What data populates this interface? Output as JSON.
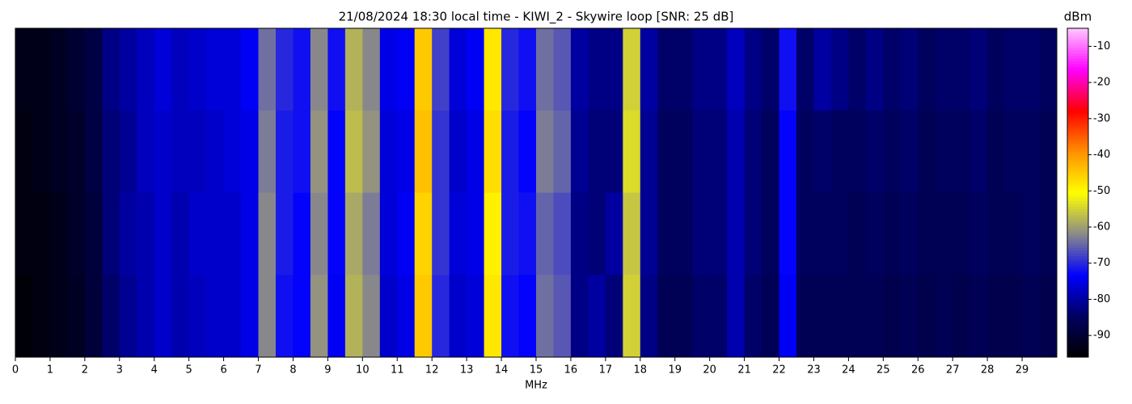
{
  "chart_data": {
    "type": "heatmap",
    "title": "21/08/2024 18:30 local time - KIWI_2 - Skywire loop [SNR: 25 dB]",
    "x_label": "MHz",
    "xlim": [
      0,
      30
    ],
    "xticks": [
      0,
      1,
      2,
      3,
      4,
      5,
      6,
      7,
      8,
      9,
      10,
      11,
      12,
      13,
      14,
      15,
      16,
      17,
      18,
      19,
      20,
      21,
      22,
      23,
      24,
      25,
      26,
      27,
      28,
      29
    ],
    "values": [
      [
        -93,
        -93,
        -92,
        -90,
        -88,
        -82,
        -80,
        -78,
        -76,
        -78,
        -77,
        -76,
        -76,
        -74,
        -64,
        -70,
        -72,
        -62,
        -72,
        -58,
        -62,
        -75,
        -74,
        -45,
        -68,
        -76,
        -74,
        -48,
        -70,
        -72,
        -64,
        -66,
        -80,
        -82,
        -82,
        -55,
        -80,
        -84,
        -84,
        -82,
        -82,
        -78,
        -82,
        -84,
        -72,
        -84,
        -80,
        -82,
        -84,
        -82,
        -84,
        -83,
        -85,
        -84,
        -84,
        -83,
        -85,
        -84,
        -84,
        -85
      ],
      [
        -94,
        -93,
        -92,
        -91,
        -88,
        -83,
        -81,
        -78,
        -77,
        -78,
        -78,
        -77,
        -76,
        -75,
        -63,
        -71,
        -72,
        -61,
        -73,
        -57,
        -61,
        -76,
        -75,
        -44,
        -69,
        -77,
        -75,
        -47,
        -71,
        -73,
        -63,
        -65,
        -81,
        -83,
        -83,
        -54,
        -81,
        -85,
        -85,
        -83,
        -83,
        -79,
        -83,
        -85,
        -73,
        -85,
        -84,
        -85,
        -85,
        -84,
        -85,
        -84,
        -86,
        -85,
        -85,
        -84,
        -86,
        -85,
        -85,
        -86
      ],
      [
        -94,
        -94,
        -93,
        -91,
        -89,
        -83,
        -80,
        -79,
        -77,
        -79,
        -77,
        -77,
        -77,
        -75,
        -62,
        -71,
        -73,
        -62,
        -73,
        -59,
        -63,
        -76,
        -74,
        -46,
        -69,
        -76,
        -75,
        -49,
        -71,
        -72,
        -65,
        -67,
        -82,
        -83,
        -80,
        -56,
        -81,
        -85,
        -85,
        -83,
        -83,
        -79,
        -83,
        -85,
        -73,
        -85,
        -85,
        -85,
        -86,
        -85,
        -86,
        -85,
        -86,
        -86,
        -86,
        -85,
        -86,
        -86,
        -85,
        -86
      ],
      [
        -95,
        -94,
        -93,
        -92,
        -89,
        -84,
        -81,
        -79,
        -77,
        -79,
        -78,
        -77,
        -77,
        -75,
        -62,
        -72,
        -73,
        -61,
        -74,
        -58,
        -62,
        -77,
        -75,
        -45,
        -70,
        -77,
        -76,
        -48,
        -72,
        -73,
        -64,
        -66,
        -82,
        -80,
        -83,
        -55,
        -82,
        -86,
        -86,
        -84,
        -84,
        -79,
        -84,
        -86,
        -74,
        -86,
        -86,
        -86,
        -86,
        -86,
        -87,
        -86,
        -87,
        -86,
        -87,
        -86,
        -87,
        -87,
        -86,
        -87
      ]
    ],
    "colorbar": {
      "label": "dBm",
      "lim": [
        -96,
        -5
      ],
      "ticks": [
        -90,
        -80,
        -70,
        -60,
        -50,
        -40,
        -30,
        -20,
        -10
      ],
      "colors": [
        "#000000",
        "#000060",
        "#0000ff",
        "#8a8a8a",
        "#ffff00",
        "#ff9000",
        "#ff0000",
        "#ff00ff",
        "#ffc8ff"
      ]
    }
  }
}
